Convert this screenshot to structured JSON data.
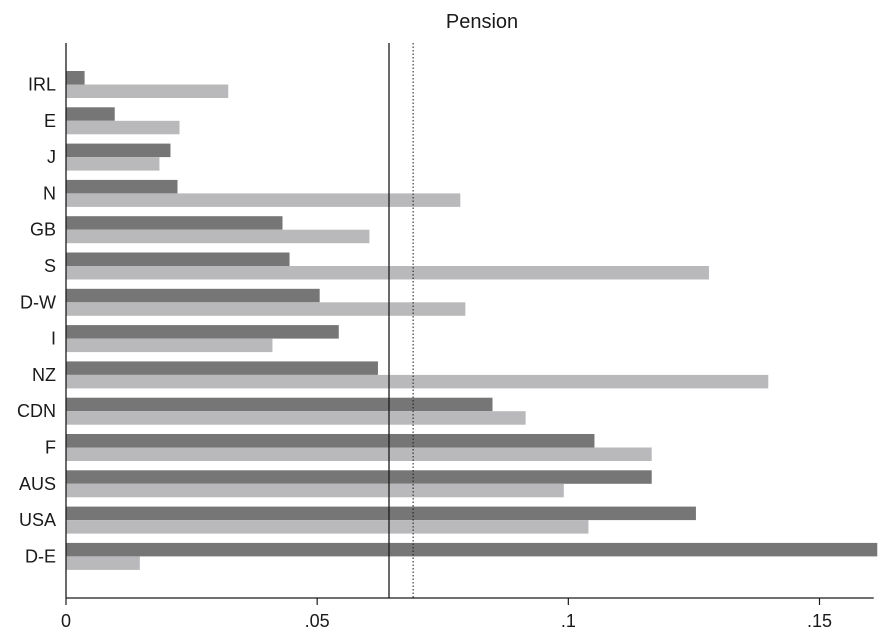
{
  "chart_data": {
    "type": "bar",
    "orientation": "horizontal",
    "title": "Pension",
    "xlabel": "",
    "ylabel": "",
    "xlim": [
      0,
      0.16
    ],
    "x_ticks": [
      0,
      0.05,
      0.1,
      0.15
    ],
    "x_tick_labels": [
      "0",
      ".05",
      ".1",
      ".15"
    ],
    "grid": false,
    "categories": [
      "IRL",
      "E",
      "J",
      "N",
      "GB",
      "S",
      "D-W",
      "I",
      "NZ",
      "CDN",
      "F",
      "AUS",
      "USA",
      "D-E"
    ],
    "series": [
      {
        "color": "#767676",
        "values": [
          0.0037,
          0.0097,
          0.0208,
          0.0222,
          0.0431,
          0.0445,
          0.0505,
          0.0543,
          0.0621,
          0.0849,
          0.1052,
          0.1166,
          0.1254,
          0.1615
        ]
      },
      {
        "color": "#b9b9bb",
        "values": [
          0.0323,
          0.0226,
          0.0186,
          0.0785,
          0.0604,
          0.128,
          0.0795,
          0.0411,
          0.1398,
          0.0915,
          0.1166,
          0.0991,
          0.104,
          0.0147
        ]
      }
    ],
    "reference_lines": [
      {
        "value": 0.0643,
        "style": "solid"
      },
      {
        "value": 0.0691,
        "style": "dotted"
      }
    ]
  }
}
